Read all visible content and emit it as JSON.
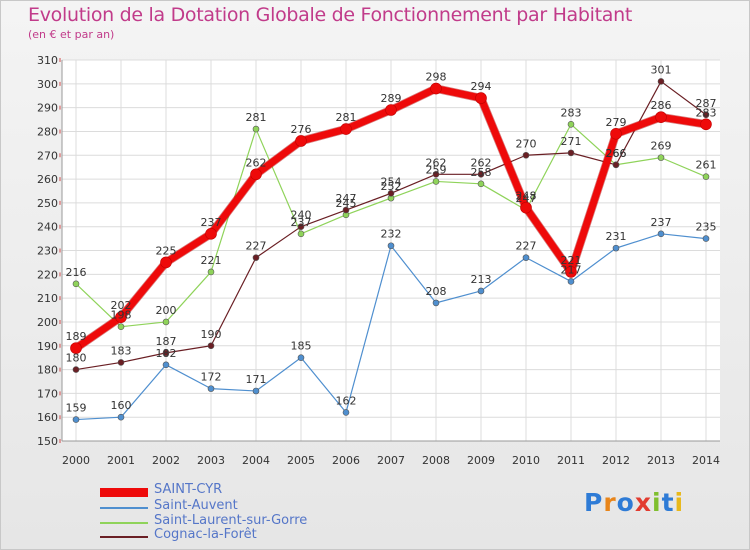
{
  "header": {
    "title": "Evolution de la Dotation Globale de Fonctionnement par Habitant",
    "subtitle": "(en € et par an)"
  },
  "logo": {
    "text": "Proxiti",
    "letters": [
      "P",
      "r",
      "o",
      "x",
      "i",
      "t",
      "i"
    ],
    "colors": [
      "#2e7bd6",
      "#e8851a",
      "#2e7bd6",
      "#e23b2f",
      "#7fbf2e",
      "#2e7bd6",
      "#e8b81a"
    ]
  },
  "chart_data": {
    "type": "line",
    "title": "Evolution de la Dotation Globale de Fonctionnement par Habitant",
    "subtitle": "(en € et par an)",
    "xlabel": "",
    "ylabel": "",
    "ylim": [
      150,
      310
    ],
    "yticks": [
      150,
      160,
      170,
      180,
      190,
      200,
      210,
      220,
      230,
      240,
      250,
      260,
      270,
      280,
      290,
      300,
      310
    ],
    "x": [
      2000,
      2001,
      2002,
      2003,
      2004,
      2005,
      2006,
      2007,
      2008,
      2009,
      2010,
      2011,
      2012,
      2013,
      2014
    ],
    "grid": true,
    "legend": "bottom-left",
    "series": [
      {
        "name": "Saint-Auvent",
        "color": "#4f8fcf",
        "width": 1.2,
        "values": [
          159,
          160,
          182,
          172,
          171,
          185,
          162,
          232,
          208,
          213,
          227,
          217,
          231,
          237,
          235
        ]
      },
      {
        "name": "Saint-Laurent-sur-Gorre",
        "color": "#8fd35a",
        "width": 1.2,
        "values": [
          216,
          198,
          200,
          221,
          281,
          237,
          245,
          252,
          259,
          258,
          247,
          283,
          266,
          269,
          261
        ]
      },
      {
        "name": "Cognac-la-Forêt",
        "color": "#6a1f24",
        "width": 1.2,
        "values": [
          180,
          183,
          187,
          190,
          227,
          240,
          247,
          254,
          262,
          262,
          270,
          271,
          266,
          301,
          287
        ]
      },
      {
        "name": "SAINT-CYR",
        "color": "#ee0a0a",
        "width": 7,
        "values": [
          189,
          202,
          225,
          237,
          262,
          276,
          281,
          289,
          298,
          294,
          248,
          221,
          279,
          286,
          283
        ]
      }
    ],
    "labels": {
      "Saint-Auvent": [
        "159",
        "160",
        "182",
        "172",
        "171",
        "185",
        "162",
        "232",
        "208",
        "213",
        "227",
        "217",
        "231",
        "237",
        "235"
      ],
      "Saint-Laurent-sur-Gorre": [
        "216",
        "198",
        "200",
        "221",
        "281",
        "237",
        "245",
        "252",
        "259",
        "258",
        "247",
        "283",
        "266",
        "269",
        "261"
      ],
      "Cognac-la-Forêt": [
        "180",
        "183",
        "187",
        "190",
        "227",
        "240",
        "247",
        "254",
        "262",
        "262",
        "270",
        "271",
        "266",
        "301",
        "287"
      ],
      "SAINT-CYR": [
        "189",
        "202",
        "225",
        "237",
        "262",
        "276",
        "281",
        "289",
        "298",
        "294",
        "248",
        "221",
        "279",
        "286",
        "283"
      ]
    }
  },
  "legend": [
    {
      "name": "SAINT-CYR",
      "color": "#ee0a0a",
      "thickness": "thick"
    },
    {
      "name": "Saint-Auvent",
      "color": "#4f8fcf",
      "thickness": "thin"
    },
    {
      "name": "Saint-Laurent-sur-Gorre",
      "color": "#8fd35a",
      "thickness": "thin"
    },
    {
      "name": "Cognac-la-Forêt",
      "color": "#6a1f24",
      "thickness": "thin"
    }
  ]
}
